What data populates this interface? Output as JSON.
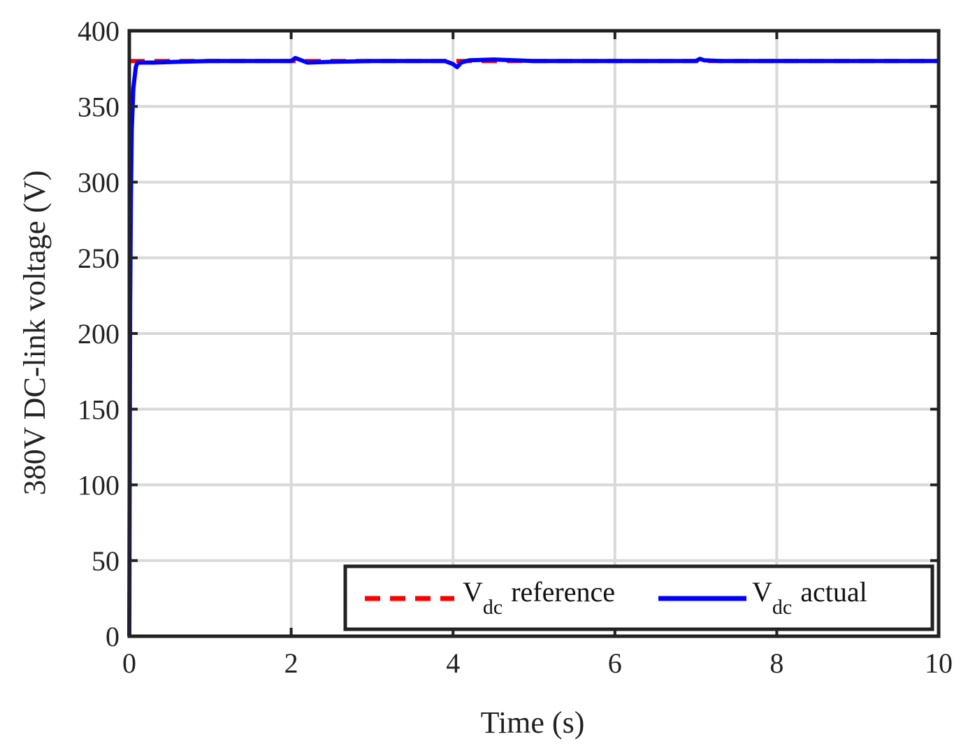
{
  "chart_data": {
    "type": "line",
    "xlabel": "Time (s)",
    "ylabel": "380V DC-link voltage (V)",
    "xlim": [
      0,
      10
    ],
    "ylim": [
      0,
      400
    ],
    "xticks": [
      0,
      2,
      4,
      6,
      8,
      10
    ],
    "yticks": [
      0,
      50,
      100,
      150,
      200,
      250,
      300,
      350,
      400
    ],
    "xtick_labels": [
      "0",
      "2",
      "4",
      "6",
      "8",
      "10"
    ],
    "ytick_labels": [
      "0",
      "50",
      "100",
      "150",
      "200",
      "250",
      "300",
      "350",
      "400"
    ],
    "grid": true,
    "legend_position": "bottom-right",
    "series": [
      {
        "name": "V",
        "name_subscript": "dc",
        "name_suffix": "reference",
        "color": "#ff0000",
        "style": "dashed",
        "x": [
          0,
          10
        ],
        "y": [
          380,
          380
        ]
      },
      {
        "name": "V",
        "name_subscript": "dc",
        "name_suffix": "actual",
        "color": "#0000ff",
        "style": "solid",
        "x": [
          0,
          0.005,
          0.01,
          0.02,
          0.03,
          0.05,
          0.08,
          0.1,
          0.3,
          0.6,
          1.0,
          1.5,
          2.0,
          2.05,
          2.1,
          2.2,
          2.5,
          3.0,
          3.5,
          3.9,
          4.0,
          4.05,
          4.1,
          4.2,
          4.5,
          5.0,
          6.0,
          7.0,
          7.05,
          7.1,
          7.3,
          8.0,
          9.0,
          10.0
        ],
        "y": [
          0,
          120,
          220,
          290,
          335,
          362,
          376,
          379,
          379,
          379.5,
          380,
          380,
          380,
          382,
          381,
          379,
          379.5,
          380,
          380,
          380,
          378,
          376,
          379,
          380.5,
          381,
          380,
          380,
          380,
          381.5,
          380.5,
          380,
          380,
          380,
          380
        ]
      }
    ]
  }
}
